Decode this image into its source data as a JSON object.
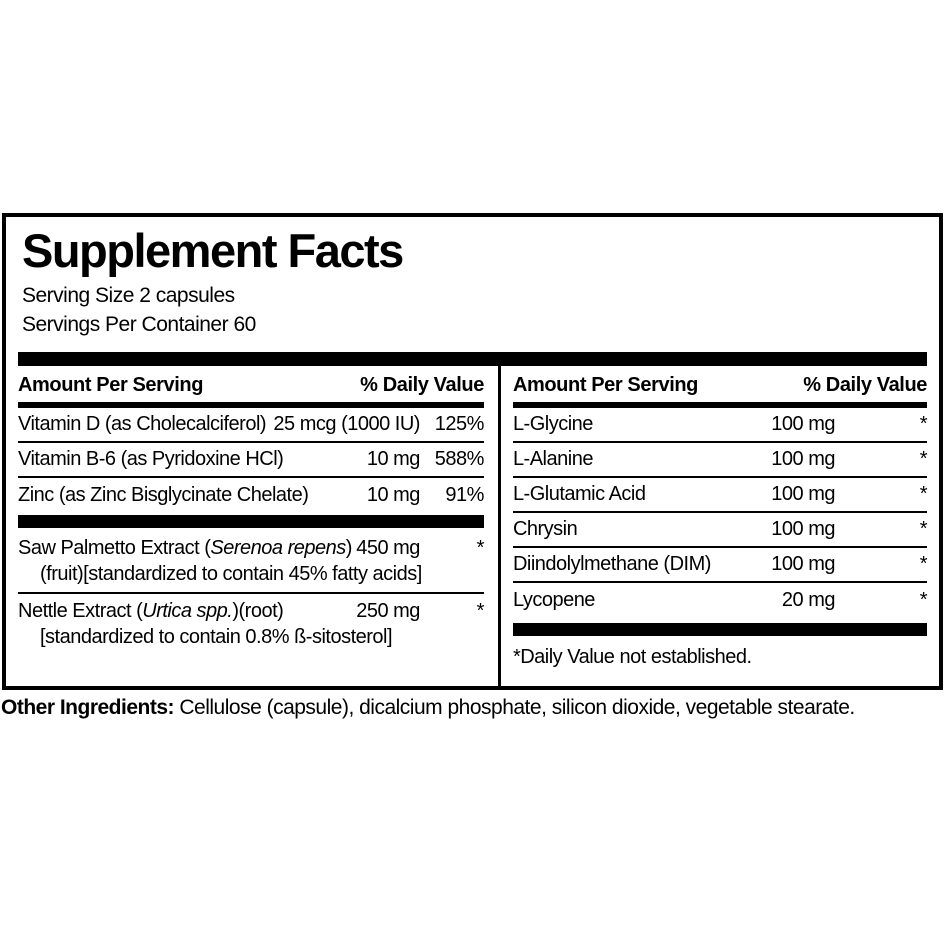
{
  "label": {
    "title": "Supplement Facts",
    "serving_size": "Serving Size 2 capsules",
    "servings_per_container": "Servings Per Container 60",
    "left": {
      "header_amount": "Amount Per Serving",
      "header_dv": "% Daily Value",
      "rows": [
        {
          "name": "Vitamin D (as Cholecalciferol)",
          "amount": "25 mcg (1000 IU)",
          "dv": "125%"
        },
        {
          "name": "Vitamin B-6 (as Pyridoxine HCl)",
          "amount": "10 mg",
          "dv": "588%"
        },
        {
          "name": "Zinc (as Zinc Bisglycinate Chelate)",
          "amount": "10 mg",
          "dv": "91%"
        }
      ],
      "herb_rows": [
        {
          "name_pre": "Saw Palmetto Extract (",
          "name_italic": "Serenoa repens",
          "name_post": ")",
          "amount": "450 mg",
          "dv": "*",
          "detail": "(fruit)[standardized to contain 45% fatty acids]"
        },
        {
          "name_pre": "Nettle Extract (",
          "name_italic": "Urtica spp.",
          "name_post": ")(root)",
          "amount": "250 mg",
          "dv": "*",
          "detail": "[standardized to contain 0.8% ß-sitosterol]"
        }
      ]
    },
    "right": {
      "header_amount": "Amount Per Serving",
      "header_dv": "% Daily Value",
      "rows": [
        {
          "name": "L-Glycine",
          "amount": "100 mg",
          "dv": "*"
        },
        {
          "name": "L-Alanine",
          "amount": "100 mg",
          "dv": "*"
        },
        {
          "name": "L-Glutamic Acid",
          "amount": "100 mg",
          "dv": "*"
        },
        {
          "name": "Chrysin",
          "amount": "100 mg",
          "dv": "*"
        },
        {
          "name": "Diindolylmethane (DIM)",
          "amount": "100 mg",
          "dv": "*"
        },
        {
          "name": "Lycopene",
          "amount": "20 mg",
          "dv": "*"
        }
      ],
      "footnote": "*Daily Value not established."
    },
    "other_ingredients_label": "Other Ingredients:",
    "other_ingredients_text": " Cellulose (capsule), dicalcium phosphate, silicon dioxide, vegetable stearate."
  }
}
